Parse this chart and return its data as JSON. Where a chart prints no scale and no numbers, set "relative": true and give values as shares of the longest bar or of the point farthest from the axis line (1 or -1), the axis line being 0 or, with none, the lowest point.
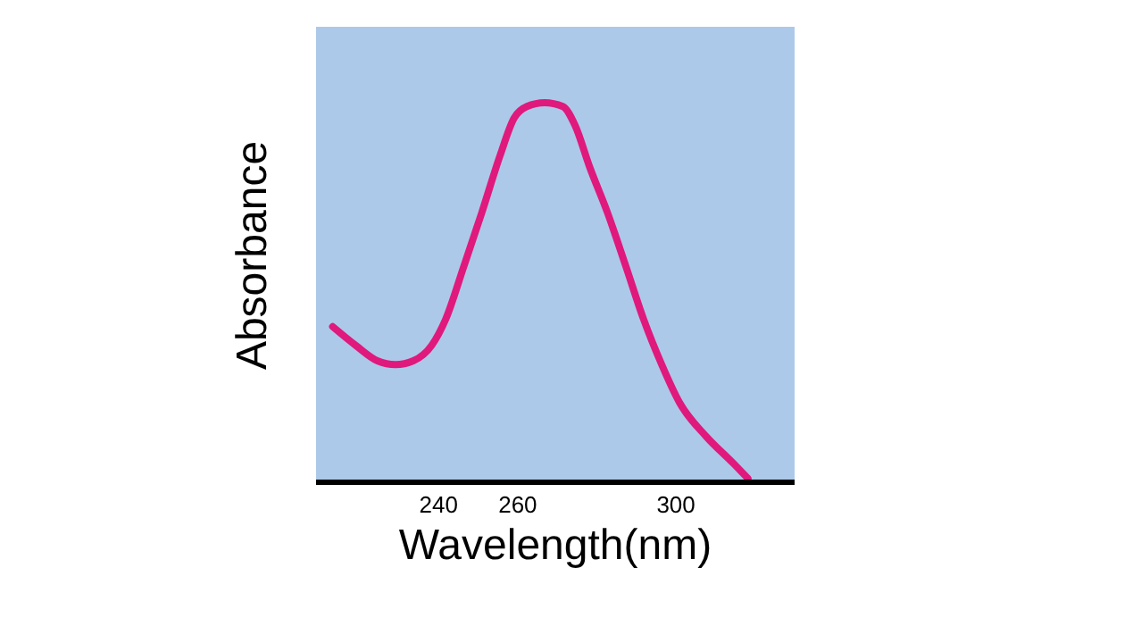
{
  "chart_data": {
    "type": "line",
    "xlabel": "Wavelength(nm)",
    "ylabel": "Absorbance",
    "relative": true,
    "xlim": [
      209,
      330
    ],
    "xticks": [
      240,
      260,
      300
    ],
    "grid": false,
    "marker": "none",
    "line_style": "solid",
    "series": [
      {
        "color": "#e0197d",
        "x": [
          213.2,
          219.1,
          224.5,
          229.1,
          233.6,
          238.2,
          241.8,
          246.4,
          250.9,
          255.5,
          259.1,
          262.3,
          266.8,
          271.4,
          274.5,
          278.2,
          282.7,
          287.3,
          291.8,
          296.4,
          300.9,
          307.7,
          314.5,
          318.2
        ],
        "values": [
          0.41,
          0.36,
          0.32,
          0.31,
          0.32,
          0.36,
          0.43,
          0.57,
          0.71,
          0.86,
          0.96,
          0.99,
          1,
          0.99,
          0.94,
          0.83,
          0.71,
          0.57,
          0.43,
          0.31,
          0.21,
          0.12,
          0.05,
          0.01
        ]
      }
    ]
  }
}
